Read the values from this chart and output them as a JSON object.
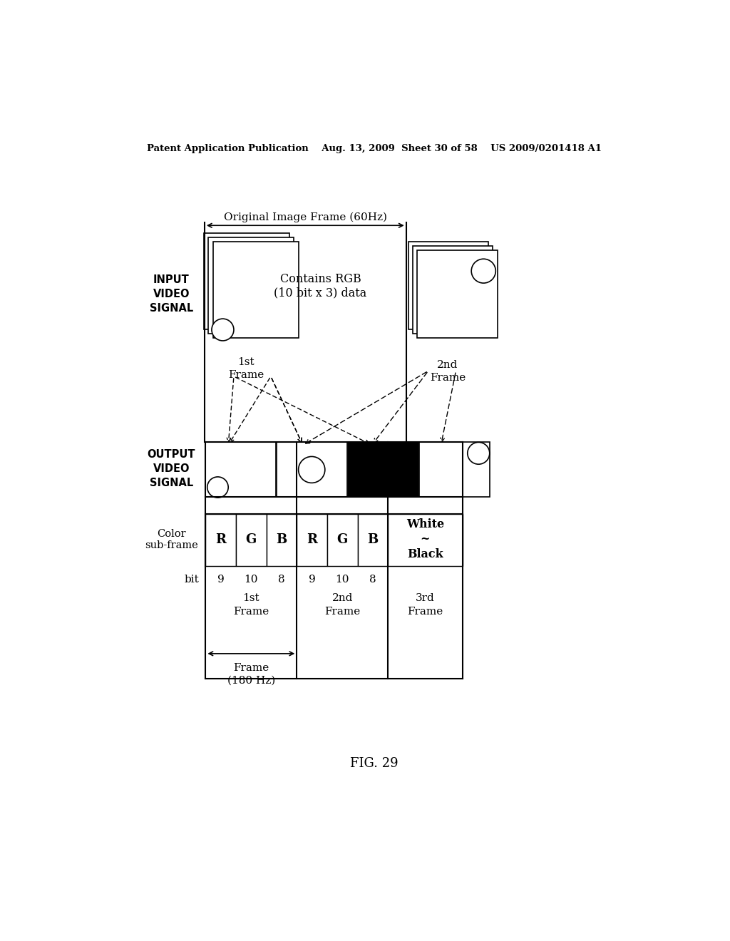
{
  "header_text": "Patent Application Publication    Aug. 13, 2009  Sheet 30 of 58    US 2009/0201418 A1",
  "fig_label": "FIG. 29",
  "title_60hz": "Original Image Frame (60Hz)",
  "label_input": "INPUT\nVIDEO\nSIGNAL",
  "label_output": "OUTPUT\nVIDEO\nSIGNAL",
  "label_color_subframe": "Color\nsub-frame",
  "label_bit": "bit",
  "label_contains_rgb": "Contains RGB\n(10 bit x 3) data",
  "label_1st_frame_top": "1st\nFrame",
  "label_2nd_frame_top": "2nd\nFrame",
  "label_1st_frame_bot": "1st\nFrame",
  "label_2nd_frame_bot": "2nd\nFrame",
  "label_3rd_frame_bot": "3rd\nFrame",
  "label_frame_180hz": "Frame\n(180 Hz)",
  "label_white_black": "White\n~\nBlack",
  "bit_labels": [
    "9",
    "10",
    "8"
  ],
  "rgb_labels": [
    "R",
    "G",
    "B"
  ]
}
